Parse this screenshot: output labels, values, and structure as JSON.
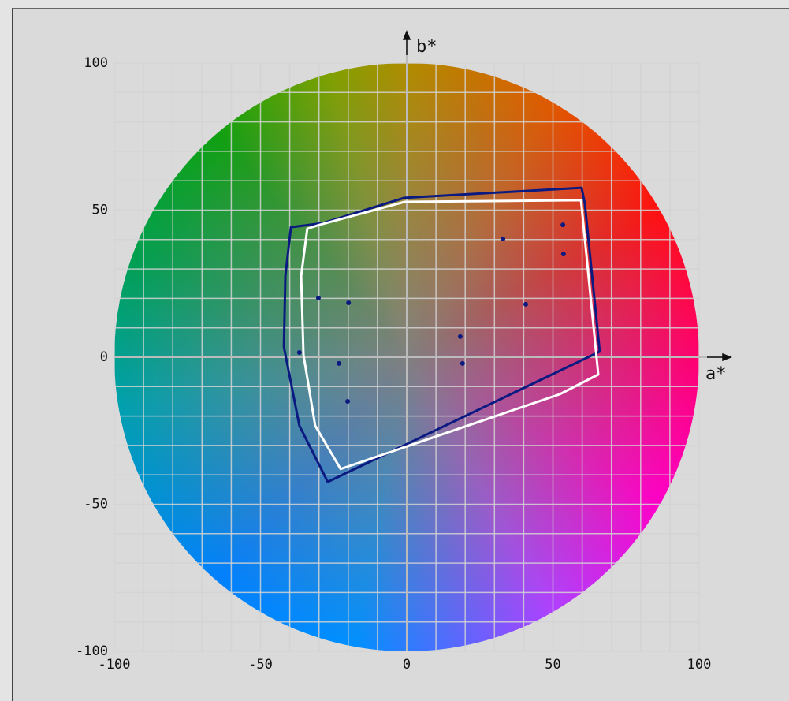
{
  "chart_data": {
    "type": "scatter",
    "x_label": "a*",
    "y_label": "b*",
    "xlim": [
      -100,
      100
    ],
    "ylim": [
      -100,
      100
    ],
    "xticks": [
      -100,
      -50,
      0,
      50,
      100
    ],
    "yticks": [
      -100,
      -50,
      0,
      50,
      100
    ],
    "xgrid": [
      -100,
      -90,
      -80,
      -70,
      -60,
      -50,
      -40,
      -30,
      -20,
      -10,
      0,
      10,
      20,
      30,
      40,
      50,
      60,
      70,
      80,
      90,
      100
    ],
    "ygrid": [
      -100,
      -90,
      -80,
      -70,
      -60,
      -50,
      -40,
      -30,
      -20,
      -10,
      0,
      10,
      20,
      30,
      40,
      50,
      60,
      70,
      80,
      90,
      100
    ],
    "grid": true,
    "series": [
      {
        "style": "polygon",
        "color": "#0a1a80",
        "x": [
          -39.6,
          -28.6,
          -0.8,
          59.8,
          60.9,
          66,
          -27,
          -36.7,
          -42,
          -41.5
        ],
        "values": [
          44.2,
          45.6,
          54.2,
          57.6,
          52.3,
          1.9,
          -42.4,
          -23.3,
          3.5,
          27.6
        ]
      },
      {
        "style": "polygon",
        "color": "#ffffff",
        "x": [
          -34,
          -29.9,
          -0.8,
          59.6,
          65.5,
          52.3,
          -22.6,
          -31.3,
          -35.3,
          -36.1
        ],
        "values": [
          43.7,
          45,
          52.8,
          53.4,
          -5.9,
          -12.6,
          -38,
          -23.3,
          0.8,
          27.6
        ]
      },
      {
        "style": "points",
        "color": "#0a1a80",
        "x": [
          -30.2,
          -19.9,
          -36.7,
          -23.2,
          -20.2,
          18.3,
          19.1,
          32.9,
          40.7,
          53.4,
          53.6
        ],
        "values": [
          20.1,
          18.5,
          1.6,
          -2.1,
          -15,
          7,
          -2.1,
          40.2,
          18,
          45,
          35.1
        ]
      }
    ]
  }
}
